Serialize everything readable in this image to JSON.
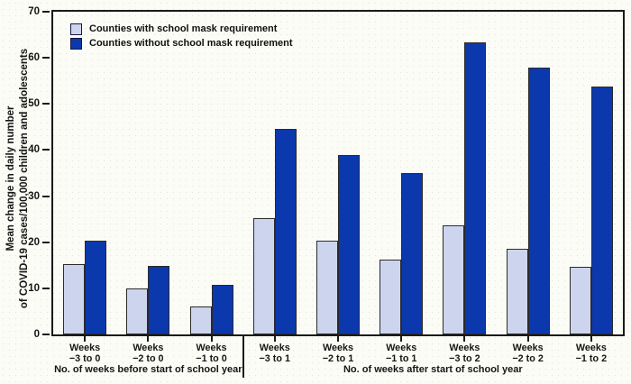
{
  "chart_data": {
    "type": "bar",
    "title": "",
    "ylabel_lines": [
      "Mean change in daily number",
      "of COVID-19 cases/100,000 children and adolescents"
    ],
    "ylim": [
      0,
      70
    ],
    "yticks": [
      0,
      10,
      20,
      30,
      40,
      50,
      60,
      70
    ],
    "grid": false,
    "legend_position": "top-left-inside",
    "categories": [
      {
        "line1": "Weeks",
        "line2": "−3 to 0"
      },
      {
        "line1": "Weeks",
        "line2": "−2 to 0"
      },
      {
        "line1": "Weeks",
        "line2": "−1 to 0"
      },
      {
        "line1": "Weeks",
        "line2": "−3 to 1"
      },
      {
        "line1": "Weeks",
        "line2": "−2 to 1"
      },
      {
        "line1": "Weeks",
        "line2": "−1 to 1"
      },
      {
        "line1": "Weeks",
        "line2": "−3 to 2"
      },
      {
        "line1": "Weeks",
        "line2": "−2 to 2"
      },
      {
        "line1": "Weeks",
        "line2": "−1 to 2"
      }
    ],
    "series": [
      {
        "name": "Counties with school mask requirement",
        "color": "#cdd5ee",
        "values": [
          15.2,
          10.0,
          6.0,
          25.3,
          20.3,
          16.3,
          23.7,
          18.6,
          14.7
        ]
      },
      {
        "name": "Counties without school mask requirement",
        "color": "#0b38ad",
        "values": [
          20.3,
          14.9,
          10.7,
          44.6,
          39.0,
          35.0,
          63.4,
          57.9,
          53.8
        ]
      }
    ],
    "sections": [
      {
        "label": "No. of weeks before start of school year",
        "groups": 3
      },
      {
        "label": "No. of weeks after start of school year",
        "groups": 6
      }
    ]
  },
  "style": {
    "axis_color": "#1a1a1a",
    "bar_border_color": "#2b2b2b",
    "background_color": "#fcfcf6",
    "text_color": "#161616"
  }
}
